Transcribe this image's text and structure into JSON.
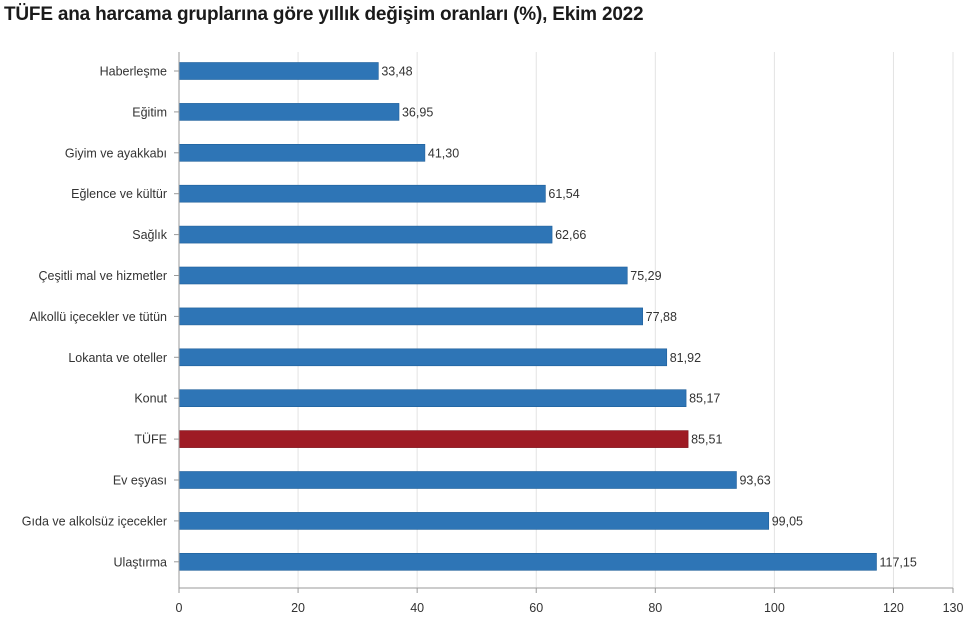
{
  "chart_data": {
    "type": "bar",
    "orientation": "horizontal",
    "title": "TÜFE ana harcama gruplarına göre yıllık değişim oranları (%), Ekim 2022",
    "categories": [
      "Haberleşme",
      "Eğitim",
      "Giyim ve ayakkabı",
      "Eğlence ve kültür",
      "Sağlık",
      "Çeşitli mal ve hizmetler",
      "Alkollü içecekler ve tütün",
      "Lokanta ve oteller",
      "Konut",
      "TÜFE",
      "Ev eşyası",
      "Gıda ve alkolsüz içecekler",
      "Ulaştırma"
    ],
    "values": [
      33.48,
      36.95,
      41.3,
      61.54,
      62.66,
      75.29,
      77.88,
      81.92,
      85.17,
      85.51,
      93.63,
      99.05,
      117.15
    ],
    "value_labels": [
      "33,48",
      "36,95",
      "41,30",
      "61,54",
      "62,66",
      "75,29",
      "77,88",
      "81,92",
      "85,17",
      "85,51",
      "93,63",
      "99,05",
      "117,15"
    ],
    "xlim": [
      0,
      130
    ],
    "xticks": [
      0,
      20,
      40,
      60,
      80,
      100,
      120,
      130
    ],
    "xlabel": "",
    "ylabel": "",
    "grid": true,
    "legend": "none",
    "colors": {
      "default": "#2e75b6",
      "highlight": "#9e1b24",
      "highlight_category": "TÜFE",
      "grid": "#e3e3e3",
      "axis": "#9a9a9a"
    }
  }
}
